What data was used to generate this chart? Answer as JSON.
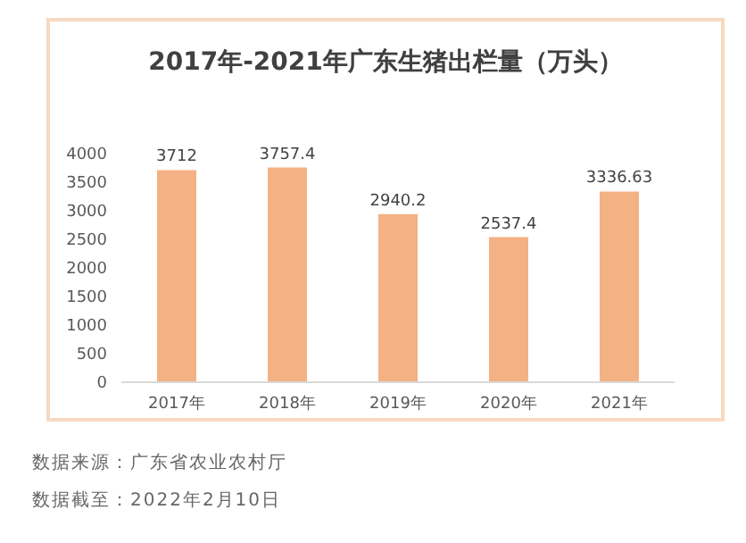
{
  "chart_data": {
    "type": "bar",
    "title": "2017年-2021年广东生猪出栏量（万头）",
    "categories": [
      "2017年",
      "2018年",
      "2019年",
      "2020年",
      "2021年"
    ],
    "values": [
      3712,
      3757.4,
      2940.2,
      2537.4,
      3336.63
    ],
    "color": "#f4b183",
    "ylim": [
      0,
      4000
    ],
    "yticks": [
      0,
      500,
      1000,
      1500,
      2000,
      2500,
      3000,
      3500,
      4000
    ],
    "grid": false,
    "data_labels": true,
    "annotations": [
      "数据来源：广东省农业农村厅",
      "数据截至：2022年2月10日"
    ]
  }
}
